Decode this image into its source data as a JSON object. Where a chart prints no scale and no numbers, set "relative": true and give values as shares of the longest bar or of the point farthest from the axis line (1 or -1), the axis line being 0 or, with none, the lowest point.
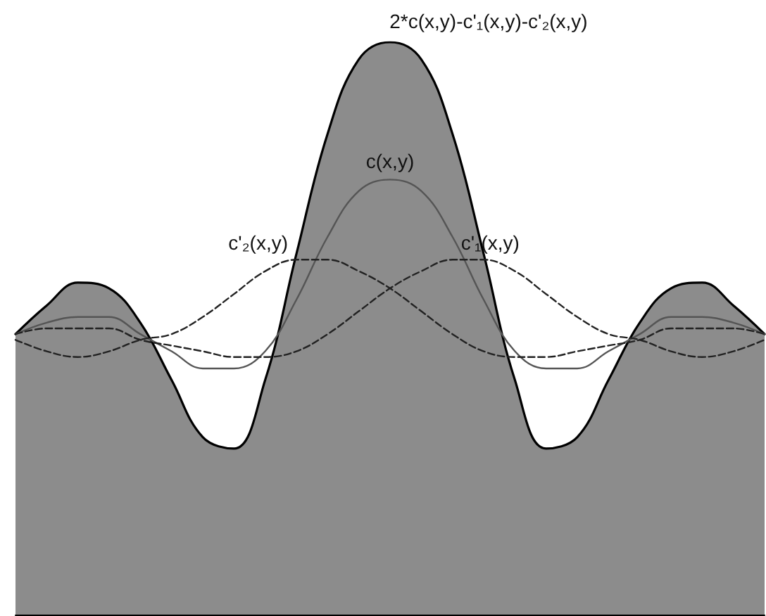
{
  "chart_data": {
    "type": "line",
    "relative": true,
    "legend": false,
    "marker": "none",
    "categories": [
      null,
      null,
      null,
      null,
      null,
      null,
      null,
      null,
      null,
      null,
      null,
      null,
      null,
      null,
      null,
      null,
      null,
      null,
      null,
      null,
      null,
      null,
      null,
      null,
      null
    ],
    "series": [
      {
        "name": "2*c(x,y)-c'₁(x,y)-c'₂(x,y)",
        "type": "area",
        "color": "#8c8c8c",
        "values": [
          0.49,
          0.54,
          0.58,
          0.57,
          0.51,
          0.41,
          0.31,
          0.29,
          0.41,
          0.63,
          0.84,
          0.97,
          1,
          0.97,
          0.84,
          0.63,
          0.41,
          0.29,
          0.31,
          0.41,
          0.51,
          0.57,
          0.58,
          0.54,
          0.49
        ]
      },
      {
        "name": "c(x,y)",
        "color": "#555555",
        "line_style": "solid",
        "values": [
          0.49,
          0.51,
          0.52,
          0.52,
          0.49,
          0.46,
          0.43,
          0.43,
          0.46,
          0.55,
          0.66,
          0.74,
          0.76,
          0.74,
          0.66,
          0.55,
          0.46,
          0.43,
          0.43,
          0.46,
          0.49,
          0.52,
          0.52,
          0.51,
          0.49
        ]
      },
      {
        "name": "c'₂(x,y)",
        "color": "#222222",
        "line_style": "dashed",
        "values": [
          0.48,
          0.46,
          0.45,
          0.46,
          0.48,
          0.49,
          0.52,
          0.56,
          0.6,
          0.62,
          0.62,
          0.6,
          0.57,
          0.53,
          0.49,
          0.46,
          0.45,
          0.45,
          0.46,
          0.47,
          0.48,
          0.5,
          0.5,
          0.5,
          0.49
        ]
      },
      {
        "name": "c'₁(x,y)",
        "color": "#222222",
        "line_style": "dashed",
        "values": [
          0.49,
          0.5,
          0.5,
          0.5,
          0.48,
          0.47,
          0.46,
          0.45,
          0.45,
          0.46,
          0.49,
          0.53,
          0.57,
          0.6,
          0.62,
          0.62,
          0.6,
          0.56,
          0.52,
          0.49,
          0.48,
          0.46,
          0.45,
          0.46,
          0.48
        ]
      }
    ]
  }
}
